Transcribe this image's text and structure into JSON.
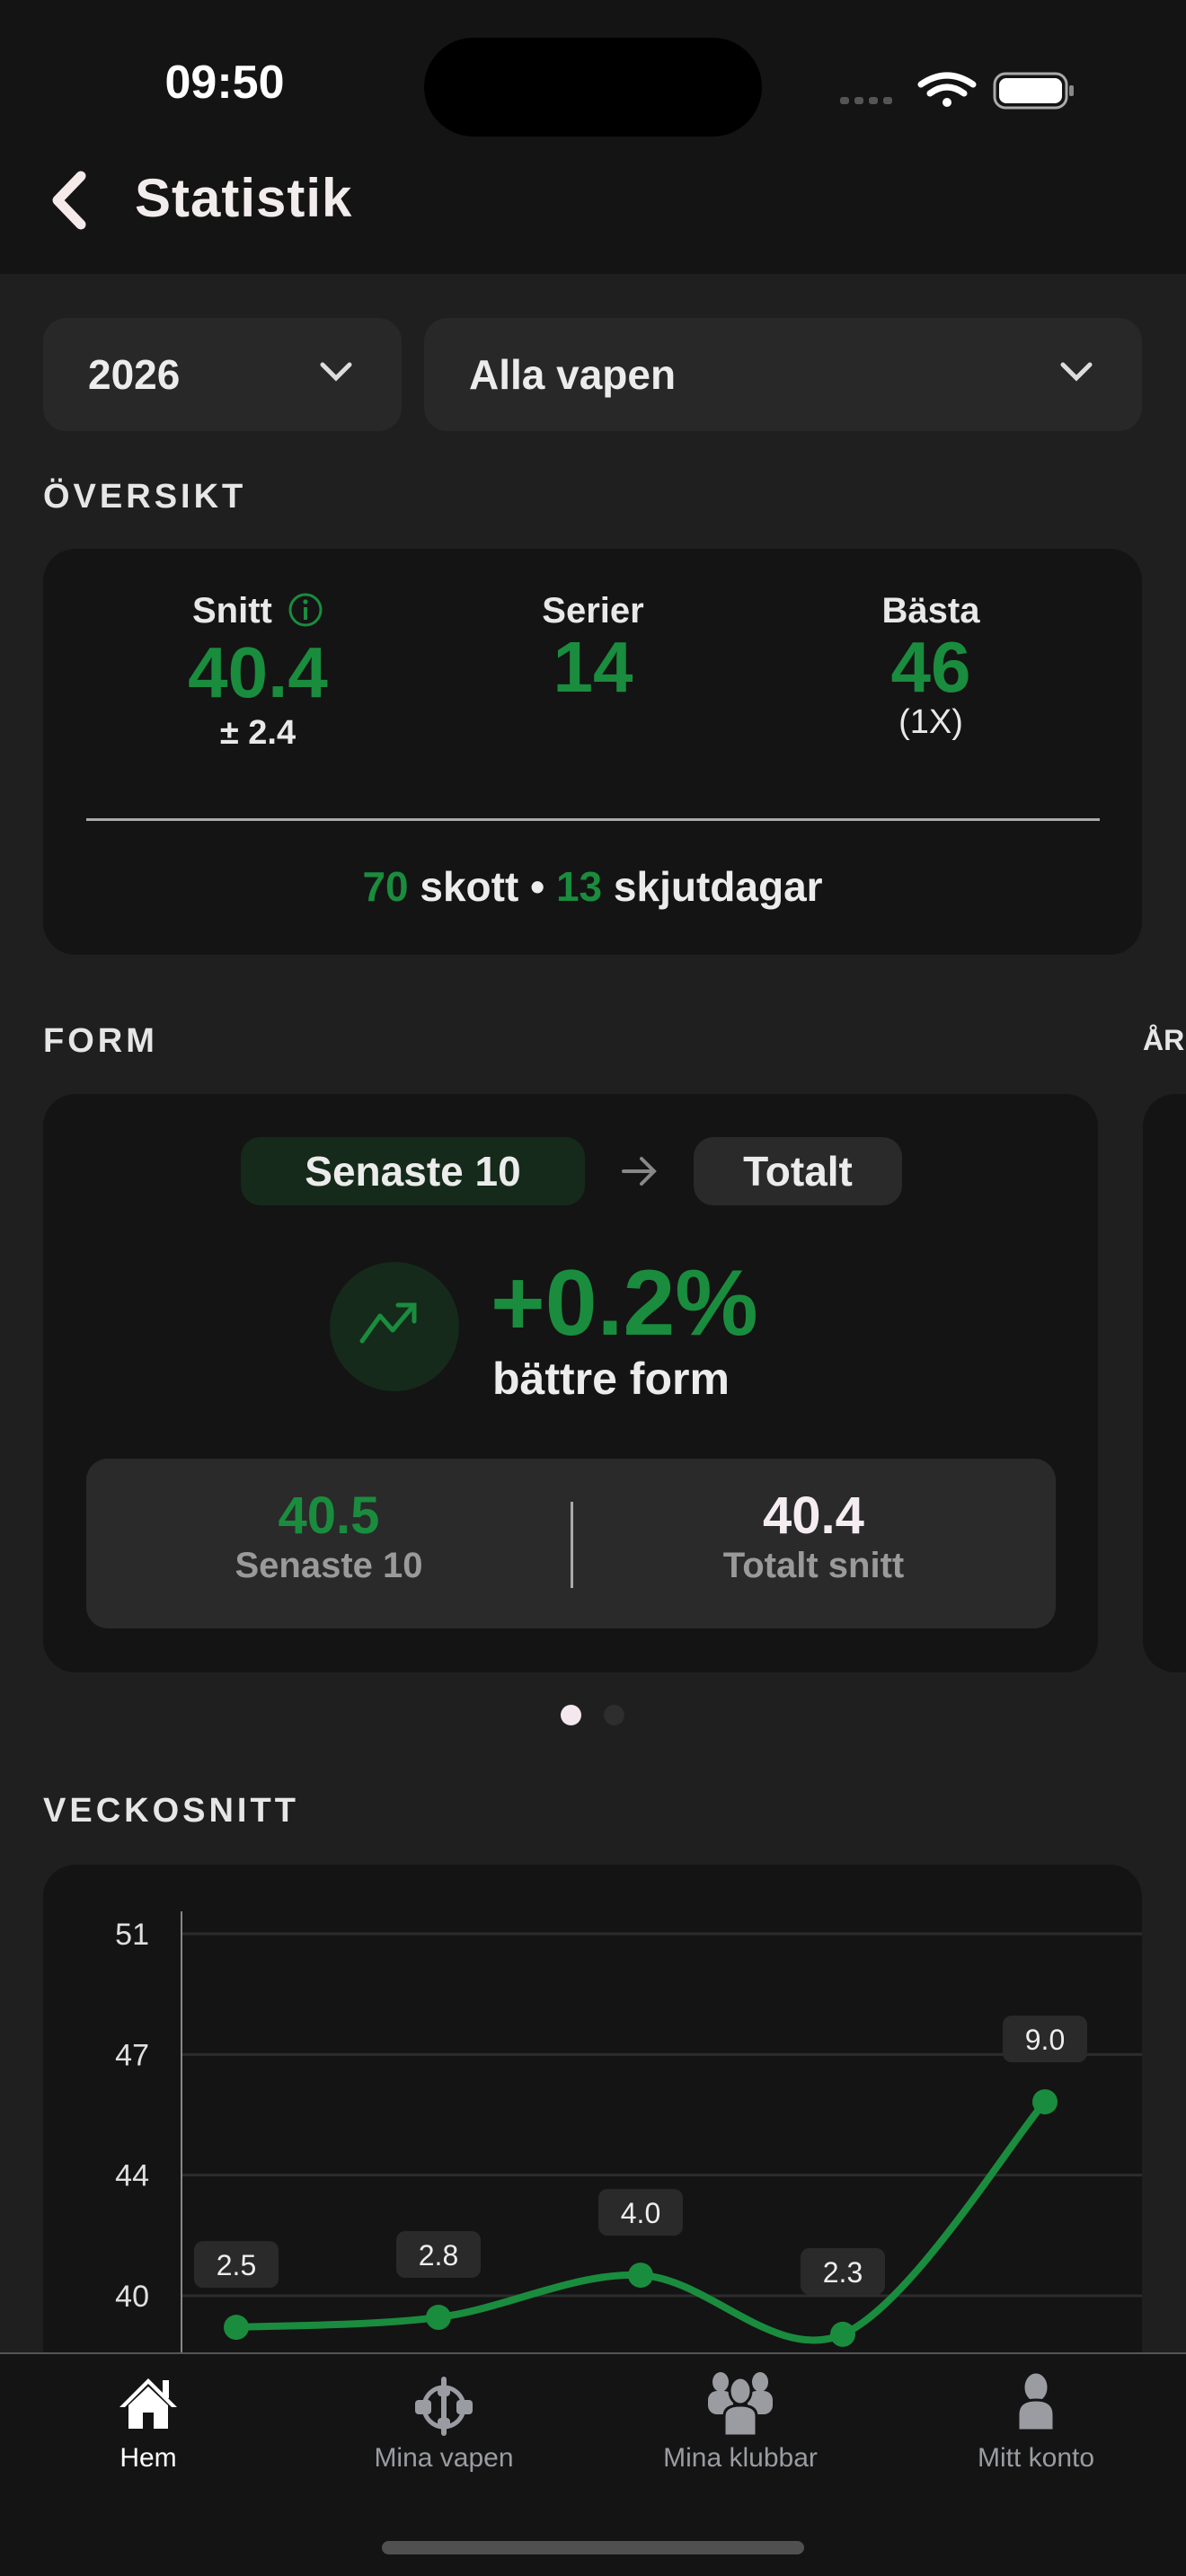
{
  "status_bar": {
    "time": "09:50"
  },
  "header": {
    "title": "Statistik"
  },
  "filters": {
    "year": "2026",
    "weapon": "Alla vapen"
  },
  "overview": {
    "section_label": "ÖVERSIKT",
    "average": {
      "label": "Snitt",
      "value": "40.4",
      "deviation": "± 2.4"
    },
    "series": {
      "label": "Serier",
      "value": "14"
    },
    "best": {
      "label": "Bästa",
      "value": "46",
      "count": "(1X)"
    },
    "shots_value": "70",
    "shots_label": "skott",
    "separator": "•",
    "days_value": "13",
    "days_label": "skjutdagar"
  },
  "form": {
    "section_label": "FORM",
    "next_section_label": "ÅR",
    "pill_recent": "Senaste 10",
    "pill_total": "Totalt",
    "change": "+0.2%",
    "change_label": "bättre form",
    "recent_value": "40.5",
    "recent_label": "Senaste 10",
    "total_value": "40.4",
    "total_label": "Totalt snitt",
    "page_index": 0,
    "page_count": 2
  },
  "weekly": {
    "section_label": "VECKOSNITT"
  },
  "chart_data": {
    "type": "line",
    "ylim": [
      40.1,
      51.0
    ],
    "yticks": [
      "40",
      "44",
      "47",
      "51"
    ],
    "values": [
      39.15,
      39.45,
      40.72,
      38.94,
      45.94
    ],
    "labels": [
      "2.5",
      "2.8",
      "4.0",
      "2.3",
      "9.0"
    ],
    "grid": true,
    "color": "#1a8c3e"
  },
  "tabbar": {
    "items": [
      {
        "label": "Hem",
        "icon": "home-icon",
        "active": true
      },
      {
        "label": "Mina vapen",
        "icon": "crosshair-icon"
      },
      {
        "label": "Mina klubbar",
        "icon": "group-icon"
      },
      {
        "label": "Mitt konto",
        "icon": "person-icon"
      }
    ]
  },
  "colors": {
    "accent": "#1a8c3e",
    "background": "#1f1f1f",
    "card": "#141414"
  }
}
